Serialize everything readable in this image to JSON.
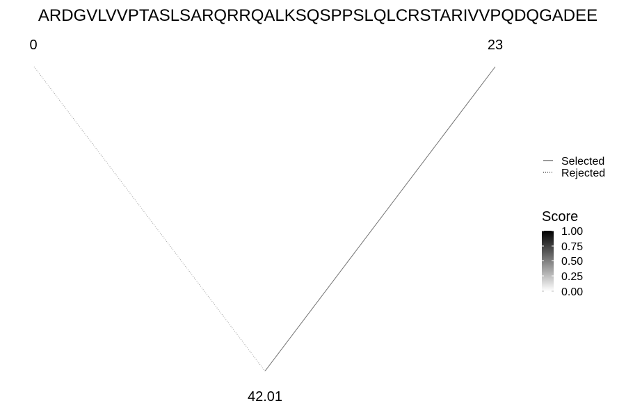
{
  "diagram": {
    "sequence": "ARDGVLVVPTASLSARQRRQALKSQSPPSLQLCRSTARIVVPQDQGADEE",
    "nodes": [
      {
        "id": "n0",
        "label": "0"
      },
      {
        "id": "n23",
        "label": "23"
      },
      {
        "id": "n42",
        "label": "42.01"
      }
    ],
    "edges": [
      {
        "from": "n0",
        "to": "n42",
        "status": "Rejected",
        "score": 0.35
      },
      {
        "from": "n23",
        "to": "n42",
        "status": "Selected",
        "score": 0.55
      }
    ]
  },
  "legend": {
    "linetype": {
      "items": [
        {
          "label": "Selected",
          "style": "solid"
        },
        {
          "label": "Rejected",
          "style": "dotted"
        }
      ]
    },
    "score": {
      "title": "Score",
      "ticks": [
        "1.00",
        "0.75",
        "0.50",
        "0.25",
        "0.00"
      ],
      "range": [
        0,
        1
      ],
      "low_color": "#ffffff",
      "high_color": "#000000"
    }
  }
}
